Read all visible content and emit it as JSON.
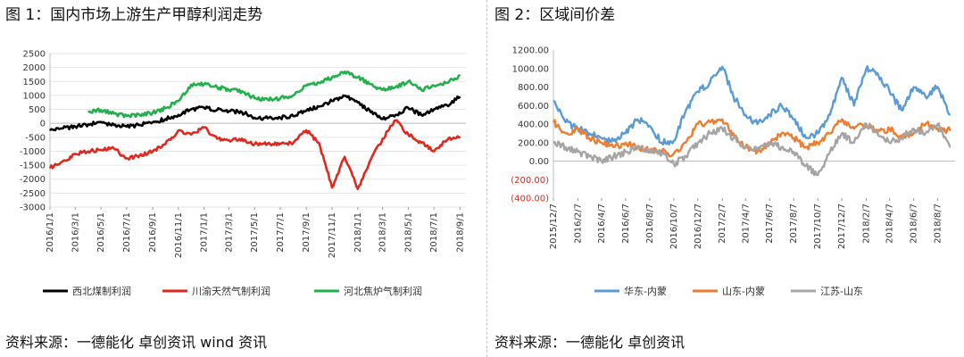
{
  "left": {
    "title": "图 1：国内市场上游生产甲醇利润走势",
    "source": "资料来源：一德能化  卓创资讯  wind 资讯"
  },
  "right": {
    "title": "图 2：区域间价差",
    "source": "资料来源：一德能化  卓创资讯"
  },
  "chart_data": [
    {
      "type": "line",
      "title": "图 1：国内市场上游生产甲醇利润走势",
      "xlabel": "",
      "ylabel": "",
      "ylim": [
        -3000,
        2500
      ],
      "yticks": [
        "2500",
        "2000",
        "1500",
        "1000",
        "500",
        "0",
        "-500",
        "-1000",
        "-1500",
        "-2000",
        "-2500",
        "-3000"
      ],
      "ytick_values": [
        2500,
        2000,
        1500,
        1000,
        500,
        0,
        -500,
        -1000,
        -1500,
        -2000,
        -2500,
        -3000
      ],
      "xlim": [
        "2016/1/1",
        "2018/9/15"
      ],
      "xticks": [
        "2016/1/1",
        "2016/3/1",
        "2016/5/1",
        "2016/7/1",
        "2016/9/1",
        "2016/11/1",
        "2017/1/1",
        "2017/3/1",
        "2017/5/1",
        "2017/7/1",
        "2017/9/1",
        "2017/11/1",
        "2018/1/1",
        "2018/3/1",
        "2018/5/1",
        "2018/7/1",
        "2018/9/1"
      ],
      "grid": true,
      "legend_position": "bottom",
      "series": [
        {
          "name": "西北煤制利润",
          "color": "#000000",
          "points": [
            [
              "2016/1/1",
              -250
            ],
            [
              "2016/2/1",
              -180
            ],
            [
              "2016/3/1",
              -120
            ],
            [
              "2016/4/1",
              -40
            ],
            [
              "2016/5/1",
              50
            ],
            [
              "2016/6/1",
              -60
            ],
            [
              "2016/7/1",
              -120
            ],
            [
              "2016/8/1",
              -60
            ],
            [
              "2016/9/1",
              40
            ],
            [
              "2016/10/1",
              150
            ],
            [
              "2016/11/1",
              300
            ],
            [
              "2016/12/1",
              500
            ],
            [
              "2017/1/1",
              560
            ],
            [
              "2017/2/1",
              480
            ],
            [
              "2017/3/1",
              430
            ],
            [
              "2017/4/1",
              400
            ],
            [
              "2017/5/1",
              200
            ],
            [
              "2017/6/1",
              180
            ],
            [
              "2017/7/1",
              200
            ],
            [
              "2017/8/1",
              260
            ],
            [
              "2017/9/1",
              450
            ],
            [
              "2017/10/1",
              600
            ],
            [
              "2017/11/1",
              800
            ],
            [
              "2017/12/1",
              980
            ],
            [
              "2018/1/1",
              750
            ],
            [
              "2018/2/1",
              400
            ],
            [
              "2018/3/1",
              150
            ],
            [
              "2018/4/1",
              300
            ],
            [
              "2018/5/1",
              550
            ],
            [
              "2018/6/1",
              300
            ],
            [
              "2018/7/1",
              500
            ],
            [
              "2018/8/1",
              650
            ],
            [
              "2018/9/1",
              950
            ]
          ]
        },
        {
          "name": "川渝天然气制利润",
          "color": "#e0281e",
          "points": [
            [
              "2016/1/1",
              -1600
            ],
            [
              "2016/2/1",
              -1350
            ],
            [
              "2016/3/1",
              -1100
            ],
            [
              "2016/4/1",
              -1000
            ],
            [
              "2016/5/1",
              -950
            ],
            [
              "2016/6/1",
              -900
            ],
            [
              "2016/7/1",
              -1250
            ],
            [
              "2016/8/1",
              -1150
            ],
            [
              "2016/9/1",
              -1000
            ],
            [
              "2016/10/1",
              -750
            ],
            [
              "2016/11/1",
              -250
            ],
            [
              "2016/12/1",
              -400
            ],
            [
              "2017/1/1",
              -150
            ],
            [
              "2017/2/1",
              -550
            ],
            [
              "2017/3/1",
              -600
            ],
            [
              "2017/4/1",
              -550
            ],
            [
              "2017/5/1",
              -750
            ],
            [
              "2017/6/1",
              -730
            ],
            [
              "2017/7/1",
              -720
            ],
            [
              "2017/8/1",
              -700
            ],
            [
              "2017/9/1",
              -250
            ],
            [
              "2017/10/1",
              -700
            ],
            [
              "2017/11/1",
              -2300
            ],
            [
              "2017/12/1",
              -1200
            ],
            [
              "2018/1/1",
              -2350
            ],
            [
              "2018/2/1",
              -1300
            ],
            [
              "2018/3/1",
              -550
            ],
            [
              "2018/4/1",
              100
            ],
            [
              "2018/5/1",
              -400
            ],
            [
              "2018/6/1",
              -700
            ],
            [
              "2018/7/1",
              -1000
            ],
            [
              "2018/8/1",
              -600
            ],
            [
              "2018/9/1",
              -480
            ]
          ]
        },
        {
          "name": "河北焦炉气制利润",
          "color": "#22b04b",
          "points": [
            [
              "2016/1/1",
              null
            ],
            [
              "2016/4/1",
              400
            ],
            [
              "2016/5/1",
              480
            ],
            [
              "2016/6/1",
              350
            ],
            [
              "2016/7/1",
              260
            ],
            [
              "2016/8/1",
              300
            ],
            [
              "2016/9/1",
              380
            ],
            [
              "2016/10/1",
              550
            ],
            [
              "2016/11/1",
              800
            ],
            [
              "2016/12/1",
              1380
            ],
            [
              "2017/1/1",
              1400
            ],
            [
              "2017/2/1",
              1300
            ],
            [
              "2017/3/1",
              1200
            ],
            [
              "2017/4/1",
              1150
            ],
            [
              "2017/5/1",
              900
            ],
            [
              "2017/6/1",
              850
            ],
            [
              "2017/7/1",
              900
            ],
            [
              "2017/8/1",
              1000
            ],
            [
              "2017/9/1",
              1350
            ],
            [
              "2017/10/1",
              1450
            ],
            [
              "2017/11/1",
              1650
            ],
            [
              "2017/12/1",
              1850
            ],
            [
              "2018/1/1",
              1650
            ],
            [
              "2018/2/1",
              1400
            ],
            [
              "2018/3/1",
              1200
            ],
            [
              "2018/4/1",
              1300
            ],
            [
              "2018/5/1",
              1500
            ],
            [
              "2018/6/1",
              1200
            ],
            [
              "2018/7/1",
              1350
            ],
            [
              "2018/8/1",
              1450
            ],
            [
              "2018/9/1",
              1720
            ]
          ]
        }
      ]
    },
    {
      "type": "line",
      "title": "图 2：区域间价差",
      "xlabel": "",
      "ylabel": "",
      "ylim": [
        -400,
        1200
      ],
      "yticks": [
        "1200.00",
        "1000.00",
        "800.00",
        "600.00",
        "400.00",
        "200.00",
        "0.00",
        "(200.00)",
        "(400.00)"
      ],
      "ytick_values": [
        1200,
        1000,
        800,
        600,
        400,
        200,
        0,
        -200,
        -400
      ],
      "xlim": [
        "2015/12/7",
        "2018/9/20"
      ],
      "xticks": [
        "2015/12/7",
        "2016/2/7",
        "2016/4/7",
        "2016/6/7",
        "2016/8/7",
        "2016/10/7",
        "2016/12/7",
        "2017/2/7",
        "2017/4/7",
        "2017/6/7",
        "2017/8/7",
        "2017/10/7",
        "2017/12/7",
        "2018/2/7",
        "2018/4/7",
        "2018/6/7",
        "2018/8/7"
      ],
      "grid": false,
      "legend_position": "bottom",
      "series": [
        {
          "name": "华东-内蒙",
          "color": "#5b9bd5",
          "points": [
            [
              "2015/12/7",
              650
            ],
            [
              "2016/1/7",
              420
            ],
            [
              "2016/2/7",
              350
            ],
            [
              "2016/3/7",
              300
            ],
            [
              "2016/4/7",
              250
            ],
            [
              "2016/5/7",
              220
            ],
            [
              "2016/6/7",
              300
            ],
            [
              "2016/7/7",
              450
            ],
            [
              "2016/8/7",
              380
            ],
            [
              "2016/9/7",
              200
            ],
            [
              "2016/10/7",
              220
            ],
            [
              "2016/11/7",
              550
            ],
            [
              "2016/12/7",
              750
            ],
            [
              "2017/1/7",
              850
            ],
            [
              "2017/2/7",
              1020
            ],
            [
              "2017/3/7",
              700
            ],
            [
              "2017/4/7",
              500
            ],
            [
              "2017/5/7",
              400
            ],
            [
              "2017/6/7",
              500
            ],
            [
              "2017/7/7",
              600
            ],
            [
              "2017/8/7",
              450
            ],
            [
              "2017/9/7",
              250
            ],
            [
              "2017/10/7",
              300
            ],
            [
              "2017/11/7",
              500
            ],
            [
              "2017/12/7",
              900
            ],
            [
              "2018/1/7",
              600
            ],
            [
              "2018/2/7",
              1000
            ],
            [
              "2018/3/7",
              950
            ],
            [
              "2018/4/7",
              750
            ],
            [
              "2018/5/7",
              550
            ],
            [
              "2018/6/7",
              800
            ],
            [
              "2018/7/7",
              700
            ],
            [
              "2018/8/7",
              800
            ],
            [
              "2018/9/7",
              500
            ]
          ]
        },
        {
          "name": "山东-内蒙",
          "color": "#ed7d31",
          "points": [
            [
              "2015/12/7",
              420
            ],
            [
              "2016/1/7",
              300
            ],
            [
              "2016/2/7",
              350
            ],
            [
              "2016/3/7",
              250
            ],
            [
              "2016/4/7",
              200
            ],
            [
              "2016/5/7",
              150
            ],
            [
              "2016/6/7",
              200
            ],
            [
              "2016/7/7",
              150
            ],
            [
              "2016/8/7",
              120
            ],
            [
              "2016/9/7",
              100
            ],
            [
              "2016/10/7",
              80
            ],
            [
              "2016/11/7",
              200
            ],
            [
              "2016/12/7",
              400
            ],
            [
              "2017/1/7",
              420
            ],
            [
              "2017/2/7",
              450
            ],
            [
              "2017/3/7",
              300
            ],
            [
              "2017/4/7",
              150
            ],
            [
              "2017/5/7",
              100
            ],
            [
              "2017/6/7",
              200
            ],
            [
              "2017/7/7",
              300
            ],
            [
              "2017/8/7",
              250
            ],
            [
              "2017/9/7",
              150
            ],
            [
              "2017/10/7",
              200
            ],
            [
              "2017/11/7",
              300
            ],
            [
              "2017/12/7",
              450
            ],
            [
              "2018/1/7",
              350
            ],
            [
              "2018/2/7",
              400
            ],
            [
              "2018/3/7",
              300
            ],
            [
              "2018/4/7",
              350
            ],
            [
              "2018/5/7",
              250
            ],
            [
              "2018/6/7",
              300
            ],
            [
              "2018/7/7",
              400
            ],
            [
              "2018/8/7",
              350
            ],
            [
              "2018/9/7",
              330
            ]
          ]
        },
        {
          "name": "江苏-山东",
          "color": "#a5a5a5",
          "points": [
            [
              "2015/12/7",
              200
            ],
            [
              "2016/1/7",
              150
            ],
            [
              "2016/2/7",
              100
            ],
            [
              "2016/3/7",
              50
            ],
            [
              "2016/4/7",
              0
            ],
            [
              "2016/5/7",
              50
            ],
            [
              "2016/6/7",
              100
            ],
            [
              "2016/7/7",
              150
            ],
            [
              "2016/8/7",
              120
            ],
            [
              "2016/9/7",
              80
            ],
            [
              "2016/10/7",
              -30
            ],
            [
              "2016/11/7",
              50
            ],
            [
              "2016/12/7",
              200
            ],
            [
              "2017/1/7",
              300
            ],
            [
              "2017/2/7",
              350
            ],
            [
              "2017/3/7",
              250
            ],
            [
              "2017/4/7",
              150
            ],
            [
              "2017/5/7",
              120
            ],
            [
              "2017/6/7",
              200
            ],
            [
              "2017/7/7",
              150
            ],
            [
              "2017/8/7",
              100
            ],
            [
              "2017/9/7",
              -50
            ],
            [
              "2017/10/7",
              -150
            ],
            [
              "2017/11/7",
              100
            ],
            [
              "2017/12/7",
              300
            ],
            [
              "2018/1/7",
              200
            ],
            [
              "2018/2/7",
              400
            ],
            [
              "2018/3/7",
              300
            ],
            [
              "2018/4/7",
              200
            ],
            [
              "2018/5/7",
              250
            ],
            [
              "2018/6/7",
              350
            ],
            [
              "2018/7/7",
              300
            ],
            [
              "2018/8/7",
              400
            ],
            [
              "2018/9/7",
              150
            ]
          ]
        }
      ]
    }
  ]
}
